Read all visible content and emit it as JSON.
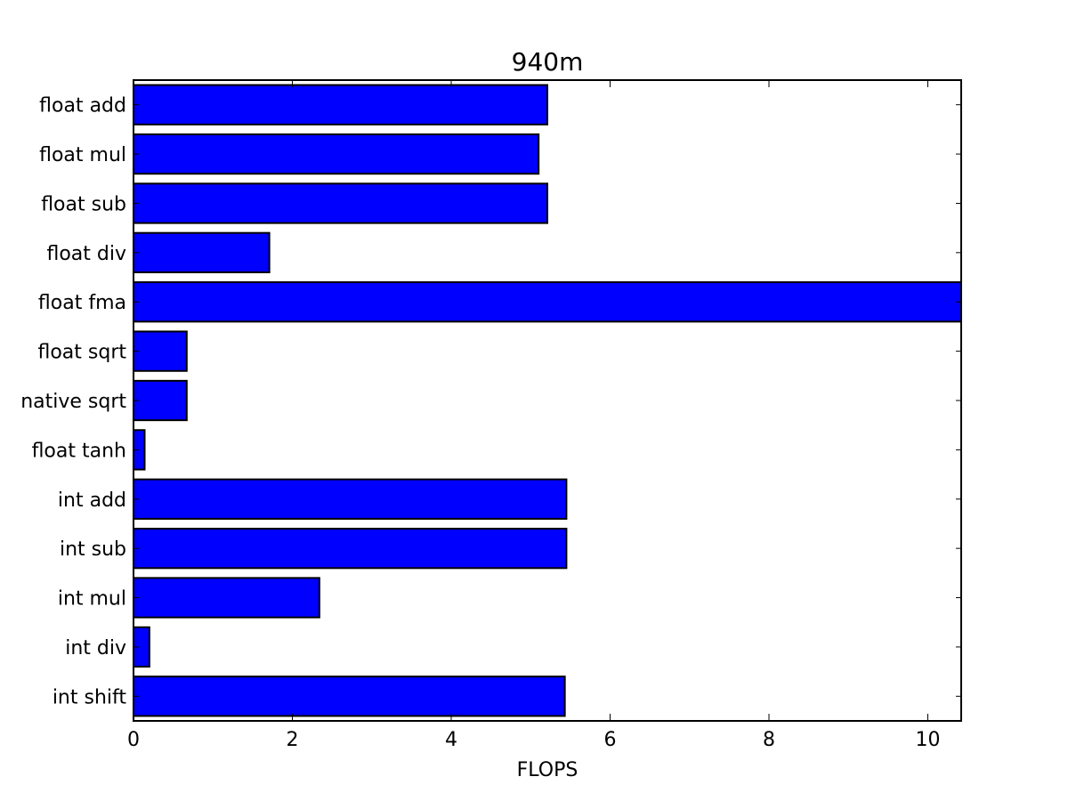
{
  "chart_data": {
    "type": "bar",
    "orientation": "horizontal",
    "title": "940m",
    "xlabel": "FLOPS",
    "ylabel": "",
    "categories": [
      "float add",
      "float mul",
      "float sub",
      "float div",
      "float fma",
      "float sqrt",
      "native sqrt",
      "float tanh",
      "int add",
      "int sub",
      "int mul",
      "int div",
      "int shift"
    ],
    "values": [
      5.21,
      5.1,
      5.21,
      1.71,
      10.42,
      0.67,
      0.67,
      0.14,
      5.45,
      5.45,
      2.34,
      0.2,
      5.43
    ],
    "xlim": [
      0,
      10.42
    ],
    "xticks": [
      0,
      2,
      4,
      6,
      8,
      10
    ],
    "grid": false,
    "legend": "none",
    "colors": {
      "bar_fill": "#0000ff",
      "bar_edge": "#000000",
      "axes": "#000000"
    }
  }
}
